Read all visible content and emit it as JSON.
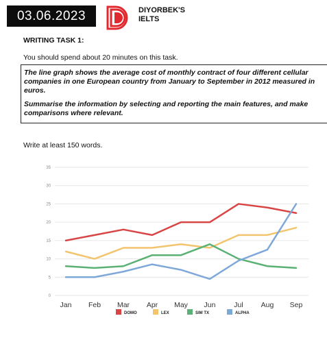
{
  "header": {
    "date": "03.06.2023",
    "brand_line1": "DIYORBEK'S",
    "brand_line2": "IELTS"
  },
  "task": {
    "heading": "WRITING TASK 1:",
    "instruction": "You should spend about 20 minutes on this task.",
    "prompt": "The line graph shows the average cost of monthly contract of four different cellular companies in one European country from January to September in 2012 measured in euros.",
    "summary": "Summarise the information by selecting and reporting the main features, and make comparisons where relevant.",
    "word_count": "Write at least 150 words."
  },
  "colors": {
    "logo_red": "#e0282e",
    "grid": "#e6e6e6"
  },
  "chart_data": {
    "type": "line",
    "x": [
      "Jan",
      "Feb",
      "Mar",
      "Apr",
      "May",
      "Jun",
      "Jul",
      "Aug",
      "Sep"
    ],
    "ylim": [
      0,
      35
    ],
    "yticks": [
      0,
      5,
      10,
      15,
      20,
      25,
      30,
      35
    ],
    "grid": true,
    "legend_placement": "bottom",
    "series": [
      {
        "name": "DOMO",
        "color": "#d94545",
        "values": [
          15,
          16.5,
          18,
          16.5,
          20,
          20,
          25,
          24,
          22.5
        ]
      },
      {
        "name": "LEX",
        "color": "#f2c46e",
        "values": [
          12,
          10,
          13,
          13,
          14,
          13,
          16.5,
          16.5,
          18.5
        ]
      },
      {
        "name": "SIM TX",
        "color": "#5ab173",
        "values": [
          8,
          7.5,
          8,
          11,
          11,
          14,
          10,
          8,
          7.5
        ]
      },
      {
        "name": "ALPHA",
        "color": "#7ea8d9",
        "values": [
          5,
          5,
          6.5,
          8.5,
          7,
          4.5,
          9.5,
          12.5,
          25
        ]
      }
    ]
  }
}
